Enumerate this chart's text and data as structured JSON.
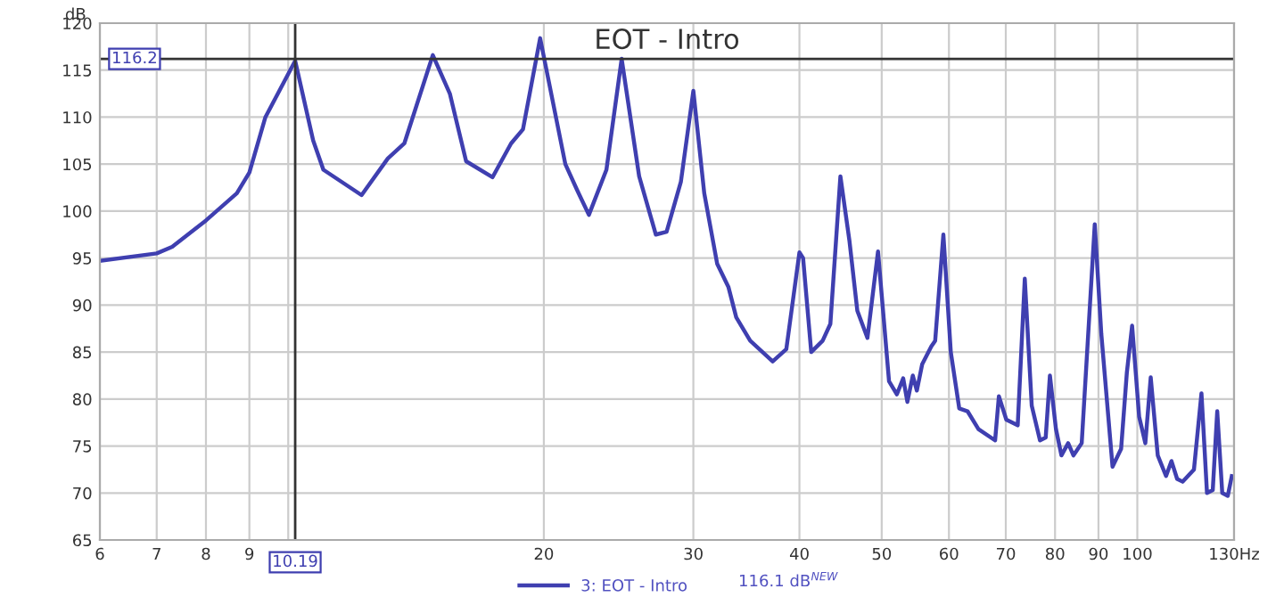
{
  "chart_data": {
    "type": "line",
    "title": "EOT - Intro",
    "ylabel": "dB",
    "log": "x",
    "xlim": [
      6,
      130
    ],
    "ylim": [
      65,
      120
    ],
    "xticks": [
      6,
      7,
      8,
      9,
      {
        "value": 10,
        "label": null
      },
      20,
      30,
      40,
      50,
      60,
      70,
      80,
      90,
      100,
      {
        "value": 130,
        "label": "130Hz"
      }
    ],
    "yticks": [
      65,
      70,
      75,
      80,
      85,
      90,
      95,
      100,
      105,
      110,
      115,
      120
    ],
    "grid": true,
    "legend": "bottom",
    "marker": "none",
    "line_style": "solid",
    "ref_lines": [
      {
        "axis": "x",
        "value": 10.19,
        "label": "10.19",
        "color": "#333333"
      },
      {
        "axis": "y",
        "value": 116.2,
        "label": "116.2",
        "color": "#333333"
      }
    ],
    "annotations": [
      "116.1 dB$^{NEW}$"
    ],
    "series": [
      {
        "name": "3: EOT - Intro",
        "color": "#3f3fb0",
        "x": [
          6.0,
          7.0,
          7.3,
          8.0,
          8.7,
          9.0,
          9.4,
          10.19,
          10.7,
          11.0,
          12.2,
          13.1,
          13.7,
          14.8,
          15.5,
          16.2,
          17.4,
          18.3,
          18.9,
          19.8,
          21.2,
          21.9,
          22.6,
          23.7,
          24.7,
          25.9,
          27.1,
          27.9,
          29.0,
          30.0,
          30.9,
          32.0,
          33.0,
          33.7,
          35.0,
          37.2,
          38.6,
          40.0,
          40.4,
          41.3,
          42.6,
          43.5,
          44.7,
          45.8,
          46.8,
          48.1,
          49.5,
          51.0,
          52.1,
          53.0,
          53.6,
          54.4,
          55.0,
          55.8,
          57.2,
          57.8,
          59.1,
          60.3,
          61.7,
          63.1,
          65.0,
          68.0,
          68.7,
          70.1,
          72.3,
          73.7,
          75.1,
          76.8,
          78.0,
          78.9,
          80.2,
          81.4,
          82.9,
          84.1,
          86.0,
          89.1,
          90.7,
          93.5,
          95.7,
          97.2,
          98.6,
          100.5,
          102.2,
          103.7,
          105.7,
          108.1,
          109.7,
          111.4,
          113.1,
          116.6,
          119.0,
          120.8,
          122.7,
          124.2,
          125.9,
          127.8,
          129.2
        ],
        "values": [
          94.7,
          95.5,
          96.2,
          99.0,
          101.9,
          104.1,
          110.0,
          116.0,
          107.5,
          104.4,
          101.7,
          105.6,
          107.2,
          116.6,
          112.5,
          105.3,
          103.6,
          107.2,
          108.7,
          118.4,
          105.0,
          102.2,
          99.6,
          104.4,
          116.2,
          103.7,
          97.5,
          97.8,
          103.1,
          112.8,
          101.9,
          94.4,
          91.9,
          88.7,
          86.2,
          84.0,
          85.3,
          95.6,
          95.0,
          85.0,
          86.2,
          88.0,
          103.7,
          96.9,
          89.4,
          86.5,
          95.7,
          81.9,
          80.5,
          82.2,
          79.7,
          82.5,
          80.9,
          83.7,
          85.6,
          86.2,
          97.5,
          85.0,
          79.0,
          78.7,
          76.8,
          75.6,
          80.3,
          77.8,
          77.2,
          92.8,
          79.3,
          75.6,
          75.9,
          82.5,
          76.8,
          74.0,
          75.3,
          74.0,
          75.3,
          98.6,
          86.9,
          72.8,
          74.7,
          82.8,
          87.8,
          78.1,
          75.3,
          82.3,
          74.0,
          71.8,
          73.4,
          71.5,
          71.2,
          72.5,
          80.6,
          70.0,
          70.3,
          78.7,
          70.0,
          69.7,
          71.8
        ]
      }
    ]
  }
}
